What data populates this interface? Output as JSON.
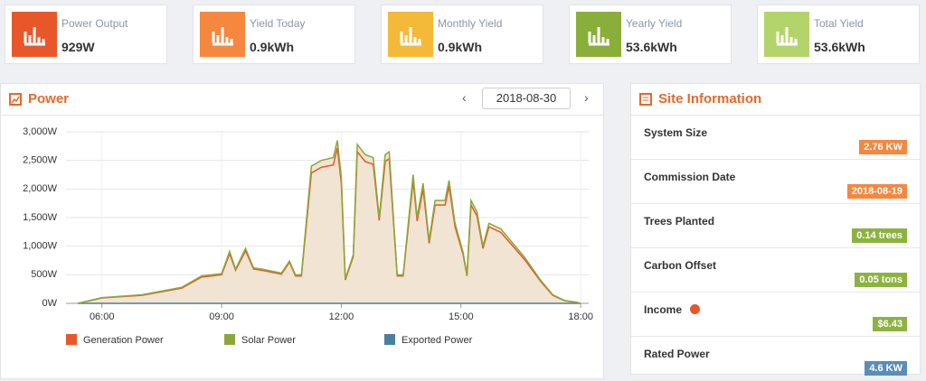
{
  "cards": [
    {
      "label": "Power Output",
      "value": "929W",
      "color": "#e8572a"
    },
    {
      "label": "Yield Today",
      "value": "0.9kWh",
      "color": "#f5873e"
    },
    {
      "label": "Monthly Yield",
      "value": "0.9kWh",
      "color": "#f5b93a"
    },
    {
      "label": "Yearly Yield",
      "value": "53.6kWh",
      "color": "#8aae3a"
    },
    {
      "label": "Total Yield",
      "value": "53.6kWh",
      "color": "#b3d46a"
    }
  ],
  "power_panel": {
    "title": "Power",
    "date": "2018-08-30"
  },
  "chart_data": {
    "type": "area",
    "x": [
      5.4,
      6.0,
      7.0,
      8.0,
      8.5,
      9.0,
      9.2,
      9.35,
      9.6,
      9.8,
      10.0,
      10.5,
      10.7,
      10.85,
      11.0,
      11.25,
      11.5,
      11.8,
      11.9,
      12.0,
      12.1,
      12.3,
      12.4,
      12.6,
      12.8,
      12.95,
      13.1,
      13.2,
      13.4,
      13.55,
      13.8,
      13.9,
      14.05,
      14.2,
      14.35,
      14.6,
      14.7,
      14.85,
      15.05,
      15.15,
      15.25,
      15.4,
      15.55,
      15.7,
      16.0,
      16.3,
      16.6,
      17.0,
      17.3,
      17.6,
      17.9,
      18.0
    ],
    "series": [
      {
        "name": "Generation Power",
        "color": "#e8572a",
        "values": [
          0,
          95,
          140,
          265,
          460,
          500,
          870,
          580,
          920,
          600,
          580,
          510,
          720,
          480,
          480,
          2280,
          2380,
          2420,
          2720,
          2100,
          410,
          820,
          2650,
          2480,
          2430,
          1450,
          2480,
          2530,
          480,
          480,
          2150,
          1440,
          2000,
          1050,
          1720,
          1720,
          2050,
          1340,
          860,
          480,
          1720,
          1530,
          960,
          1340,
          1240,
          1000,
          760,
          380,
          140,
          45,
          15,
          0
        ]
      },
      {
        "name": "Solar Power",
        "color": "#8aa83a",
        "values": [
          0,
          100,
          150,
          280,
          480,
          520,
          910,
          600,
          960,
          620,
          600,
          530,
          740,
          500,
          500,
          2400,
          2500,
          2550,
          2850,
          2200,
          430,
          850,
          2780,
          2600,
          2550,
          1500,
          2600,
          2650,
          500,
          500,
          2250,
          1500,
          2100,
          1100,
          1800,
          1800,
          2150,
          1400,
          900,
          500,
          1800,
          1600,
          1000,
          1400,
          1300,
          1050,
          800,
          400,
          150,
          50,
          20,
          0
        ]
      },
      {
        "name": "Exported Power",
        "color": "#4a7fa0",
        "values": [
          0,
          0,
          0,
          0,
          0,
          0,
          0,
          0,
          0,
          0,
          0,
          0,
          0,
          0,
          0,
          0,
          0,
          0,
          0,
          0,
          0,
          0,
          0,
          0,
          0,
          0,
          0,
          0,
          0,
          0,
          0,
          0,
          0,
          0,
          0,
          0,
          0,
          0,
          0,
          0,
          0,
          0,
          0,
          0,
          0,
          0,
          0,
          0,
          0,
          0,
          0,
          0
        ]
      }
    ],
    "fill": "#f1e4d3",
    "xlim": [
      5.1,
      18.2
    ],
    "xticks": [
      {
        "value": 6,
        "label": "06:00"
      },
      {
        "value": 9,
        "label": "09:00"
      },
      {
        "value": 12,
        "label": "12:00"
      },
      {
        "value": 15,
        "label": "15:00"
      },
      {
        "value": 18,
        "label": "18:00"
      }
    ],
    "ylim": [
      0,
      3000
    ],
    "yticks": [
      {
        "value": 0,
        "label": "0W"
      },
      {
        "value": 500,
        "label": "500W"
      },
      {
        "value": 1000,
        "label": "1,000W"
      },
      {
        "value": 1500,
        "label": "1,500W"
      },
      {
        "value": 2000,
        "label": "2,000W"
      },
      {
        "value": 2500,
        "label": "2,500W"
      },
      {
        "value": 3000,
        "label": "3,000W"
      }
    ],
    "grid": true
  },
  "site": {
    "title": "Site Information",
    "items": [
      {
        "label": "System Size",
        "value": "2.76 KW",
        "color": "#f5873e"
      },
      {
        "label": "Commission Date",
        "value": "2018-08-19",
        "color": "#f5873e"
      },
      {
        "label": "Trees Planted",
        "value": "0.14 trees",
        "color": "#8cb33f"
      },
      {
        "label": "Carbon Offset",
        "value": "0.05 tons",
        "color": "#8cb33f"
      },
      {
        "label": "Income",
        "value": "$6.43",
        "color": "#8cb33f"
      },
      {
        "label": "Rated Power",
        "value": "4.6 KW",
        "color": "#5b8db8"
      }
    ]
  }
}
